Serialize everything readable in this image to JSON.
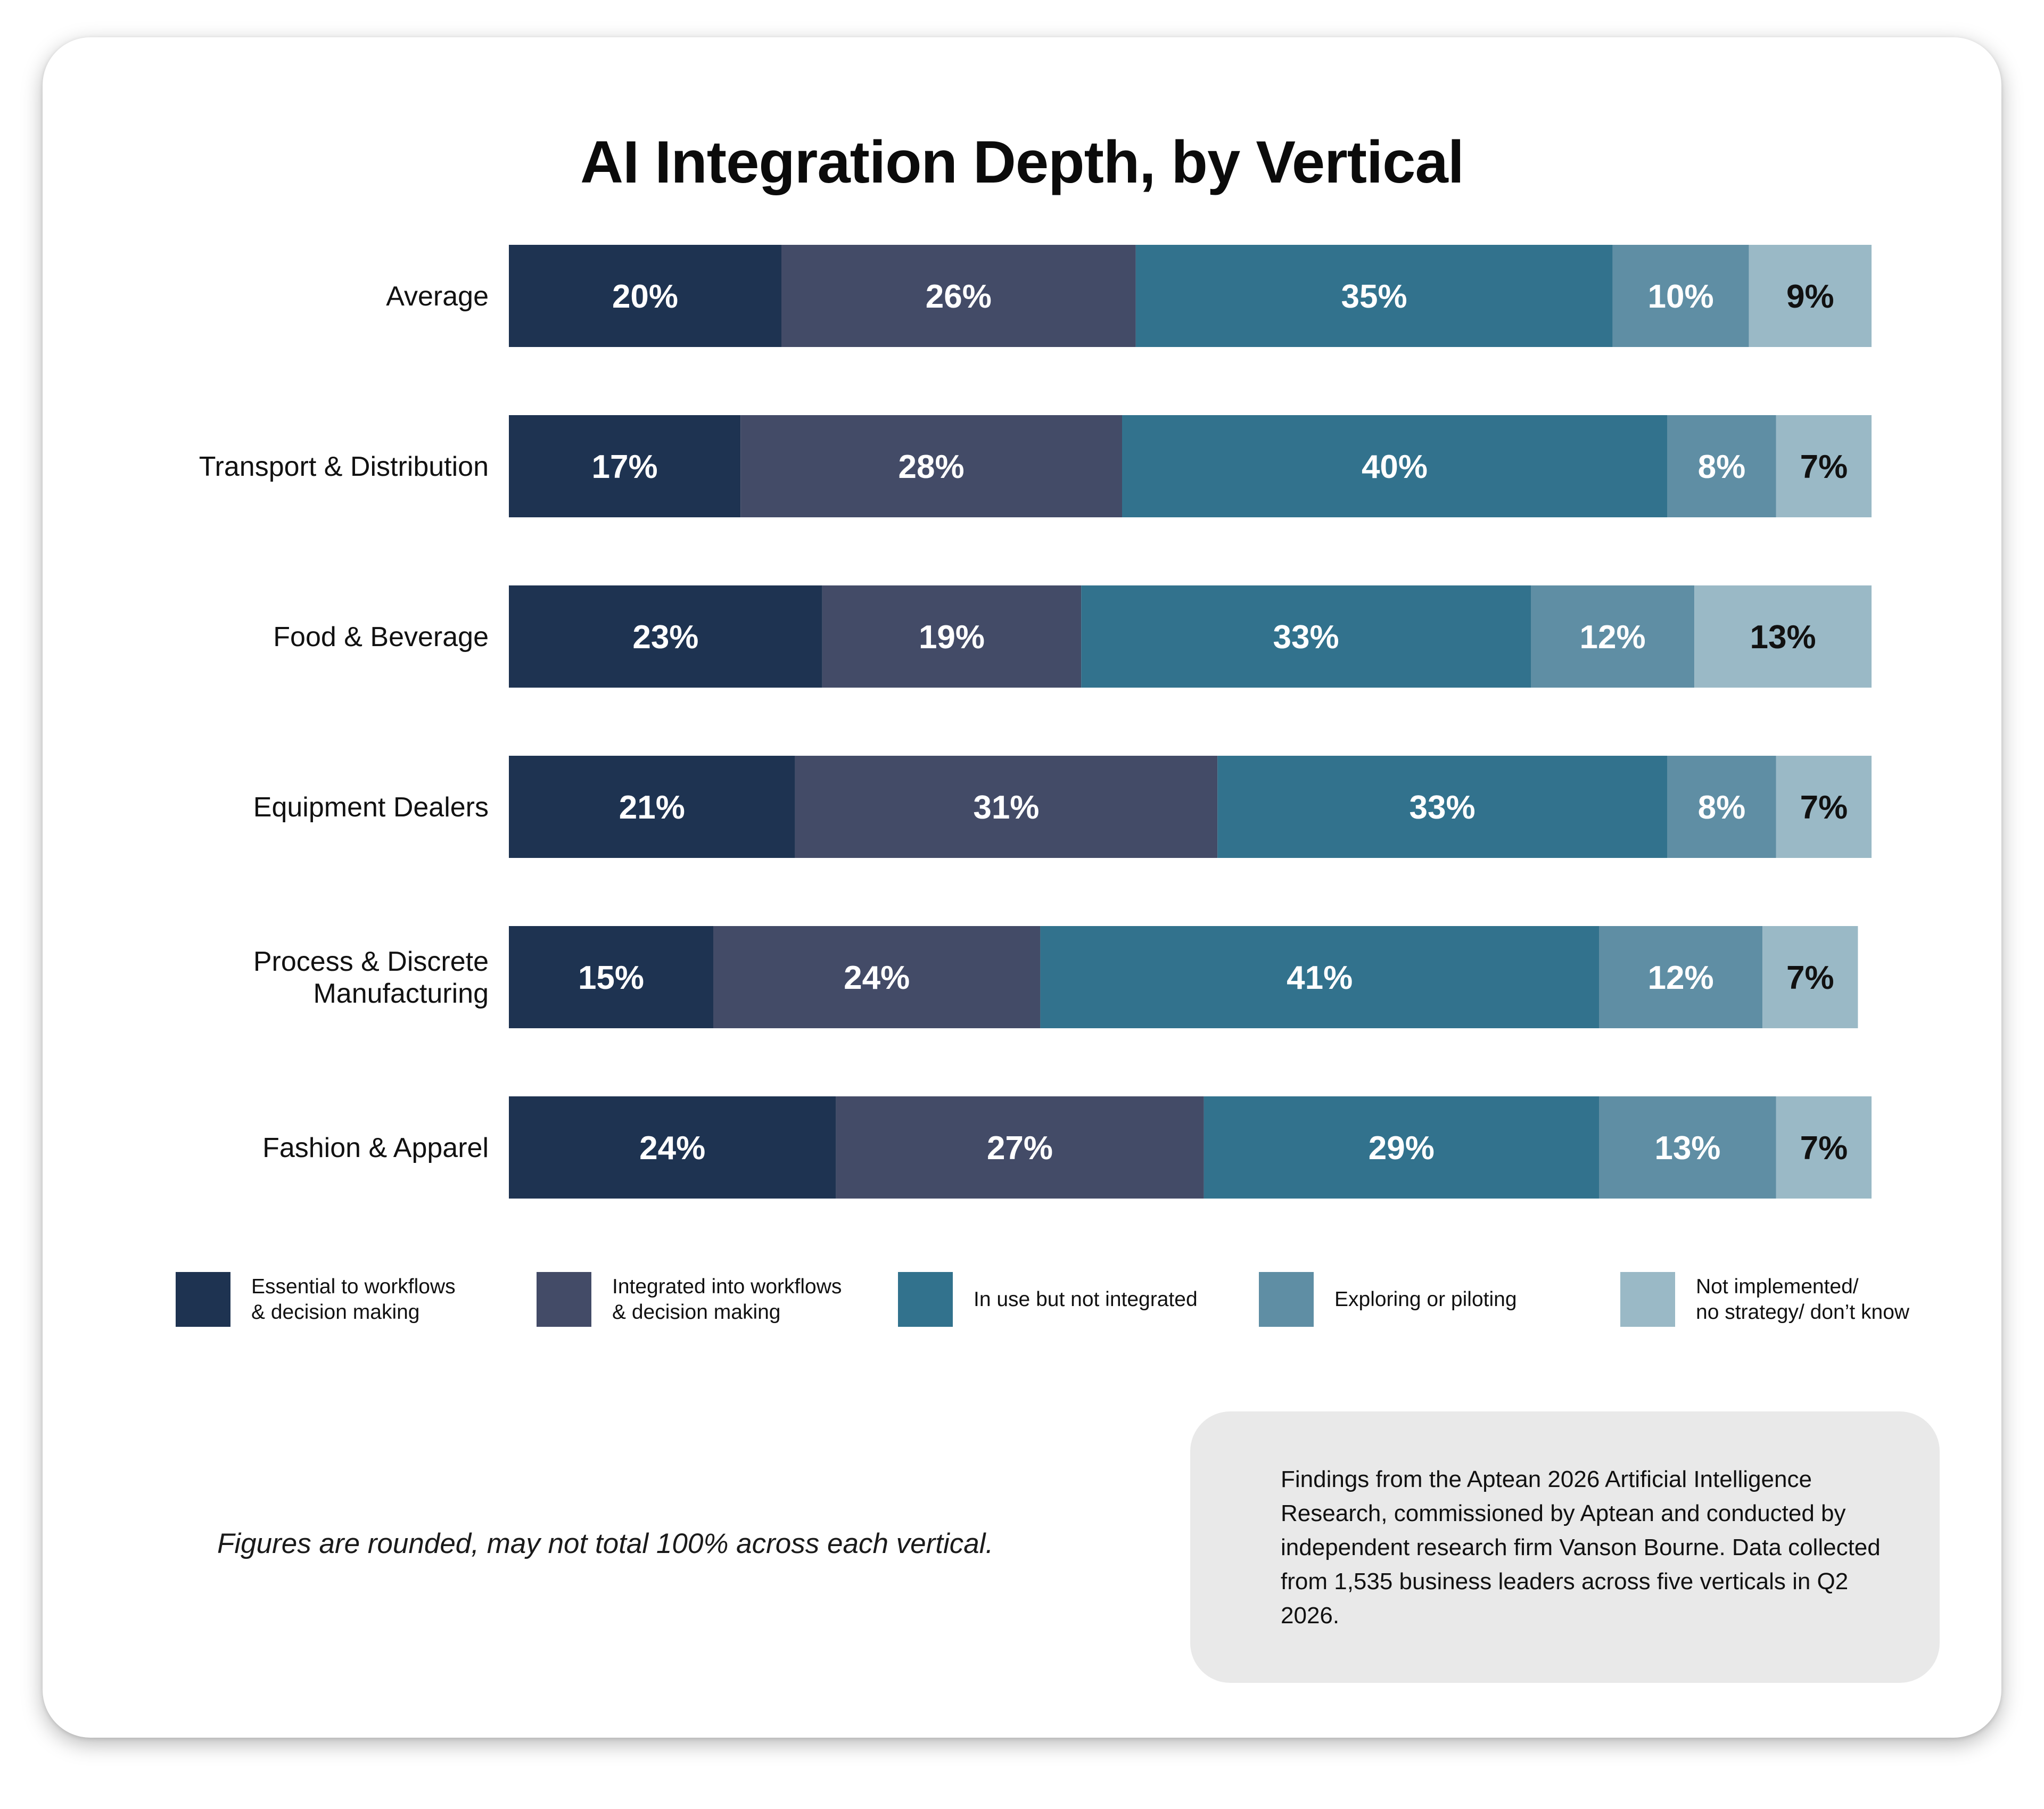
{
  "title": "AI Integration Depth, by Vertical",
  "colors": {
    "essential": "#1e3351",
    "integrated": "#434b67",
    "in_use": "#32728d",
    "exploring": "#5f8ea4",
    "not_implemented": "#9ab9c6"
  },
  "chart_data": {
    "type": "bar",
    "orientation": "horizontal",
    "stacked": true,
    "categories": [
      "Average",
      "Transport & Distribution",
      "Food & Beverage",
      "Equipment Dealers",
      "Process & Discrete\nManufacturing",
      "Fashion & Apparel"
    ],
    "series": [
      {
        "name": "Essential to workflows & decision making",
        "color": "#1e3351",
        "label_color": "#ffffff",
        "values": [
          20,
          17,
          23,
          21,
          15,
          24
        ]
      },
      {
        "name": "Integrated into workflows & decision making",
        "color": "#434b67",
        "label_color": "#ffffff",
        "values": [
          26,
          28,
          19,
          31,
          24,
          27
        ]
      },
      {
        "name": "In use but not integrated",
        "color": "#32728d",
        "label_color": "#ffffff",
        "values": [
          35,
          40,
          33,
          33,
          41,
          29
        ]
      },
      {
        "name": "Exploring or piloting",
        "color": "#5f8ea4",
        "label_color": "#ffffff",
        "values": [
          10,
          8,
          12,
          8,
          12,
          13
        ]
      },
      {
        "name": "Not implemented/ no strategy/ don’t know",
        "color": "#9ab9c6",
        "label_color": "#111111",
        "values": [
          9,
          7,
          13,
          7,
          7,
          7
        ]
      }
    ],
    "value_suffix": "%",
    "legend_position": "bottom",
    "grid": false
  },
  "legend": [
    {
      "label": "Essential to workflows\n& decision making"
    },
    {
      "label": "Integrated into workflows\n& decision making"
    },
    {
      "label": "In use but not integrated"
    },
    {
      "label": "Exploring or piloting"
    },
    {
      "label": "Not implemented/\nno strategy/ don’t know"
    }
  ],
  "footnote": "Figures are rounded, may not total 100% across each vertical.",
  "findings": "Findings from the Aptean 2026 Artificial Intelligence Research, commissioned by Aptean and conducted by independent research firm Vanson Bourne. Data collected from 1,535 business leaders across five verticals in Q2 2026."
}
